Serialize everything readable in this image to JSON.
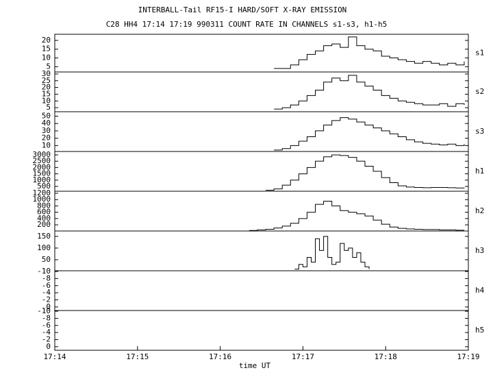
{
  "chart_data": [
    {
      "type": "line",
      "title": "INTERBALL-Tail RF15-I HARD/SOFT X-RAY EMISSION",
      "subtitle": "C28 HH4 17:14 17:19 990311  COUNT RATE IN CHANNELS s1-s3, h1-h5",
      "label": "s1",
      "step": true,
      "color": "#000000",
      "xlim": [
        0,
        5
      ],
      "ylim": [
        2,
        23.5
      ],
      "yticks": [
        5,
        10,
        15,
        20
      ],
      "x": [
        2.65,
        2.75,
        2.85,
        2.95,
        3.05,
        3.15,
        3.25,
        3.35,
        3.45,
        3.55,
        3.65,
        3.75,
        3.85,
        3.95,
        4.05,
        4.15,
        4.25,
        4.35,
        4.45,
        4.55,
        4.65,
        4.75,
        4.85,
        4.95
      ],
      "values": [
        4,
        4,
        6,
        9,
        12,
        14,
        17,
        18,
        16,
        22,
        17,
        15,
        14,
        11,
        10,
        9,
        8,
        7,
        8,
        7,
        6,
        7,
        6,
        8
      ]
    },
    {
      "type": "line",
      "label": "s2",
      "step": true,
      "color": "#000000",
      "xlim": [
        0,
        5
      ],
      "ylim": [
        2,
        31.5
      ],
      "yticks": [
        5,
        10,
        15,
        20,
        25,
        30
      ],
      "x": [
        2.65,
        2.75,
        2.85,
        2.95,
        3.05,
        3.15,
        3.25,
        3.35,
        3.45,
        3.55,
        3.65,
        3.75,
        3.85,
        3.95,
        4.05,
        4.15,
        4.25,
        4.35,
        4.45,
        4.55,
        4.65,
        4.75,
        4.85,
        4.95
      ],
      "values": [
        4,
        5,
        7,
        10,
        14,
        18,
        24,
        27,
        25,
        29,
        24,
        21,
        18,
        14,
        12,
        10,
        9,
        8,
        7,
        7,
        8,
        6,
        8,
        7
      ]
    },
    {
      "type": "line",
      "label": "s3",
      "step": true,
      "color": "#000000",
      "xlim": [
        0,
        5
      ],
      "ylim": [
        2,
        56
      ],
      "yticks": [
        10,
        20,
        30,
        40,
        50
      ],
      "x": [
        2.65,
        2.75,
        2.85,
        2.95,
        3.05,
        3.15,
        3.25,
        3.35,
        3.45,
        3.55,
        3.65,
        3.75,
        3.85,
        3.95,
        4.05,
        4.15,
        4.25,
        4.35,
        4.45,
        4.55,
        4.65,
        4.75,
        4.85,
        4.95
      ],
      "values": [
        4,
        6,
        10,
        16,
        22,
        30,
        38,
        44,
        48,
        46,
        42,
        38,
        34,
        30,
        26,
        22,
        18,
        15,
        13,
        12,
        11,
        12,
        10,
        12
      ]
    },
    {
      "type": "line",
      "label": "h1",
      "step": true,
      "color": "#000000",
      "xlim": [
        0,
        5
      ],
      "ylim": [
        120,
        3270
      ],
      "yticks": [
        500,
        1000,
        1500,
        2000,
        2500,
        3000
      ],
      "x": [
        2.55,
        2.65,
        2.75,
        2.85,
        2.95,
        3.05,
        3.15,
        3.25,
        3.35,
        3.45,
        3.55,
        3.65,
        3.75,
        3.85,
        3.95,
        4.05,
        4.15,
        4.25,
        4.35,
        4.45,
        4.55,
        4.65,
        4.75,
        4.85,
        4.95
      ],
      "values": [
        200,
        300,
        600,
        1000,
        1500,
        2000,
        2500,
        2850,
        3000,
        2950,
        2800,
        2500,
        2100,
        1700,
        1200,
        800,
        550,
        450,
        420,
        400,
        420,
        420,
        400,
        380,
        350
      ]
    },
    {
      "type": "line",
      "label": "h2",
      "step": true,
      "color": "#000000",
      "xlim": [
        0,
        5
      ],
      "ylim": [
        5,
        1265
      ],
      "yticks": [
        200,
        400,
        600,
        800,
        1000,
        1200
      ],
      "x": [
        2.35,
        2.45,
        2.55,
        2.65,
        2.75,
        2.85,
        2.95,
        3.05,
        3.15,
        3.25,
        3.35,
        3.45,
        3.55,
        3.65,
        3.75,
        3.85,
        3.95,
        4.05,
        4.15,
        4.25,
        4.35,
        4.45,
        4.55,
        4.65,
        4.75,
        4.85,
        4.95
      ],
      "values": [
        20,
        40,
        60,
        100,
        160,
        250,
        400,
        600,
        850,
        950,
        800,
        650,
        600,
        550,
        480,
        350,
        220,
        130,
        90,
        70,
        60,
        50,
        50,
        40,
        40,
        30,
        30
      ]
    },
    {
      "type": "line",
      "label": "h3",
      "step": true,
      "color": "#000000",
      "xlim": [
        0,
        5
      ],
      "ylim": [
        3,
        173
      ],
      "yticks": [
        50,
        100,
        150
      ],
      "x": [
        2.9,
        2.95,
        3.0,
        3.05,
        3.1,
        3.15,
        3.2,
        3.25,
        3.3,
        3.35,
        3.4,
        3.45,
        3.5,
        3.55,
        3.6,
        3.65,
        3.7,
        3.75,
        3.8
      ],
      "values": [
        10,
        30,
        20,
        60,
        40,
        140,
        90,
        150,
        60,
        30,
        40,
        120,
        90,
        100,
        60,
        80,
        40,
        20,
        10
      ]
    },
    {
      "type": "line",
      "label": "h4",
      "xlim": [
        0,
        5
      ],
      "ylim": [
        1,
        -10.2
      ],
      "yticks": [
        -10,
        -8,
        -6,
        -4,
        -2,
        0
      ]
    },
    {
      "type": "line",
      "label": "h5",
      "xlim": [
        0,
        5
      ],
      "ylim": [
        1,
        -10.2
      ],
      "yticks": [
        -10,
        -8,
        -6,
        -4,
        -2,
        0
      ],
      "xticks": [
        {
          "value": 0,
          "label": "17:14"
        },
        {
          "value": 1,
          "label": "17:15"
        },
        {
          "value": 2,
          "label": "17:16"
        },
        {
          "value": 3,
          "label": "17:17"
        },
        {
          "value": 4,
          "label": "17:18"
        },
        {
          "value": 5,
          "label": "17:19"
        }
      ],
      "xlabel": "time UT"
    }
  ]
}
